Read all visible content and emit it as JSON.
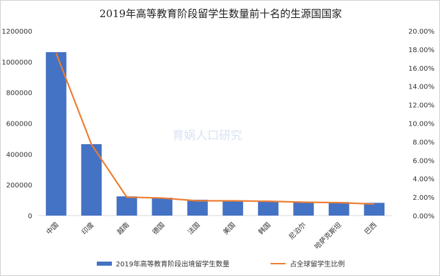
{
  "chart_data": {
    "type": "bar",
    "title": "2019年高等教育阶段留学生数量前十名的生源国国家",
    "categories": [
      "中国",
      "印度",
      "越南",
      "德国",
      "法国",
      "美国",
      "韩国",
      "尼泊尔",
      "哈萨克斯坦",
      "巴西"
    ],
    "series": [
      {
        "name": "2019年高等教育阶段出境留学生数量",
        "type": "bar",
        "axis": "left",
        "color": "#4472c4",
        "values": [
          1062000,
          464000,
          125000,
          116000,
          103000,
          99000,
          96000,
          91000,
          88000,
          83000
        ]
      },
      {
        "name": "占全球留学生比例",
        "type": "line",
        "axis": "right",
        "color": "#ed7d31",
        "values": [
          17.6,
          7.7,
          2.0,
          1.9,
          1.6,
          1.6,
          1.55,
          1.45,
          1.4,
          1.25
        ]
      }
    ],
    "ylim": [
      0,
      1200000
    ],
    "yticks": [
      "0",
      "200000",
      "400000",
      "600000",
      "800000",
      "1000000",
      "1200000"
    ],
    "y2lim": [
      0,
      20
    ],
    "y2ticks": [
      "0.00%",
      "2.00%",
      "4.00%",
      "6.00%",
      "8.00%",
      "10.00%",
      "12.00%",
      "14.00%",
      "16.00%",
      "18.00%",
      "20.00%"
    ],
    "legend_position": "bottom",
    "watermark": "育娲人口研究"
  }
}
